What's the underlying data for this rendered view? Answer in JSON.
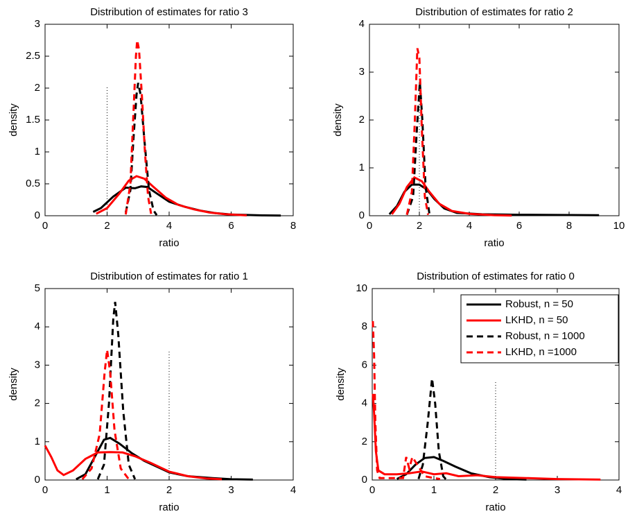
{
  "chart_data": [
    {
      "type": "line",
      "title": "Distribution of estimates for ratio 3",
      "xlabel": "ratio",
      "ylabel": "density",
      "xlim": [
        0,
        8
      ],
      "ylim": [
        0,
        3
      ],
      "xticks": [
        0,
        2,
        4,
        6,
        8
      ],
      "yticks": [
        0,
        0.5,
        1,
        1.5,
        2,
        2.5,
        3
      ],
      "marker_line": {
        "color": "#000000",
        "linestyle": "dotted",
        "x": [
          2,
          2
        ],
        "y": [
          0,
          2.03
        ]
      },
      "series": [
        {
          "color": "#000000",
          "linestyle": "solid",
          "x": [
            1.55,
            1.8,
            2.2,
            2.6,
            2.9,
            3.1,
            3.3,
            3.6,
            4,
            4.5,
            5,
            5.5,
            6,
            7,
            7.6
          ],
          "values": [
            0.06,
            0.12,
            0.3,
            0.44,
            0.43,
            0.46,
            0.45,
            0.35,
            0.22,
            0.14,
            0.08,
            0.04,
            0.02,
            0.005,
            0.003
          ]
        },
        {
          "color": "#ff0000",
          "linestyle": "solid",
          "x": [
            1.65,
            2,
            2.4,
            2.7,
            2.95,
            3.2,
            3.5,
            3.9,
            4.3,
            4.8,
            5.3,
            5.8,
            6.5
          ],
          "values": [
            0.03,
            0.12,
            0.35,
            0.55,
            0.62,
            0.58,
            0.45,
            0.28,
            0.17,
            0.1,
            0.05,
            0.025,
            0.005
          ]
        },
        {
          "color": "#000000",
          "linestyle": "dashed",
          "x": [
            2.6,
            2.75,
            2.85,
            2.95,
            3.0,
            3.08,
            3.2,
            3.35,
            3.5,
            3.6
          ],
          "values": [
            0.05,
            0.4,
            1.2,
            1.9,
            2.08,
            1.9,
            1.2,
            0.4,
            0.08,
            0.01
          ]
        },
        {
          "color": "#ff0000",
          "linestyle": "dashed",
          "x": [
            2.6,
            2.75,
            2.85,
            2.93,
            2.97,
            3.03,
            3.12,
            3.22,
            3.32,
            3.42
          ],
          "values": [
            0.02,
            0.5,
            1.6,
            2.5,
            2.75,
            2.6,
            1.9,
            1.0,
            0.3,
            0.03
          ]
        }
      ]
    },
    {
      "type": "line",
      "title": "Distribution of estimates for ratio 2",
      "xlabel": "ratio",
      "ylabel": "density",
      "xlim": [
        0,
        10
      ],
      "ylim": [
        0,
        4
      ],
      "xticks": [
        0,
        2,
        4,
        6,
        8,
        10
      ],
      "yticks": [
        0,
        1,
        2,
        3,
        4
      ],
      "marker_line": {
        "color": "#000000",
        "linestyle": "dotted",
        "x": [
          2,
          2
        ],
        "y": [
          0,
          3.0
        ]
      },
      "series": [
        {
          "color": "#000000",
          "linestyle": "solid",
          "x": [
            0.8,
            1.1,
            1.4,
            1.7,
            2,
            2.3,
            2.6,
            3,
            3.5,
            4.5,
            6,
            9.2
          ],
          "values": [
            0.03,
            0.2,
            0.5,
            0.65,
            0.65,
            0.55,
            0.35,
            0.15,
            0.06,
            0.03,
            0.02,
            0.01
          ]
        },
        {
          "color": "#ff0000",
          "linestyle": "solid",
          "x": [
            0.9,
            1.2,
            1.5,
            1.8,
            2.1,
            2.4,
            2.8,
            3.3,
            4,
            5,
            5.7
          ],
          "values": [
            0.03,
            0.25,
            0.6,
            0.8,
            0.72,
            0.5,
            0.25,
            0.1,
            0.04,
            0.01,
            0.005
          ]
        },
        {
          "color": "#000000",
          "linestyle": "dashed",
          "x": [
            1.5,
            1.75,
            1.9,
            2.02,
            2.12,
            2.25,
            2.4
          ],
          "values": [
            0.02,
            0.4,
            1.8,
            2.8,
            2.0,
            0.6,
            0.05
          ]
        },
        {
          "color": "#ff0000",
          "linestyle": "dashed",
          "x": [
            1.5,
            1.7,
            1.82,
            1.92,
            2.0,
            2.1,
            2.22,
            2.35
          ],
          "values": [
            0.02,
            0.5,
            2.0,
            3.5,
            3.3,
            1.8,
            0.4,
            0.02
          ]
        }
      ]
    },
    {
      "type": "line",
      "title": "Distribution of estimates for ratio 1",
      "xlabel": "ratio",
      "ylabel": "density",
      "xlim": [
        0,
        4
      ],
      "ylim": [
        0,
        5
      ],
      "xticks": [
        0,
        1,
        2,
        3,
        4
      ],
      "yticks": [
        0,
        1,
        2,
        3,
        4,
        5
      ],
      "marker_line": {
        "color": "#000000",
        "linestyle": "dotted",
        "x": [
          2,
          2
        ],
        "y": [
          0,
          3.4
        ]
      },
      "series": [
        {
          "color": "#000000",
          "linestyle": "solid",
          "x": [
            0.5,
            0.65,
            0.8,
            0.95,
            1.05,
            1.2,
            1.4,
            1.6,
            1.8,
            2,
            2.3,
            2.7,
            3,
            3.35
          ],
          "values": [
            0.02,
            0.15,
            0.6,
            1.05,
            1.1,
            0.95,
            0.7,
            0.5,
            0.35,
            0.2,
            0.1,
            0.05,
            0.02,
            0.01
          ]
        },
        {
          "color": "#ff0000",
          "linestyle": "solid",
          "x": [
            0,
            0.1,
            0.2,
            0.3,
            0.45,
            0.65,
            0.85,
            1.05,
            1.25,
            1.45,
            1.7,
            2.0,
            2.3,
            2.6,
            2.85
          ],
          "values": [
            0.9,
            0.6,
            0.25,
            0.13,
            0.25,
            0.55,
            0.72,
            0.73,
            0.72,
            0.62,
            0.45,
            0.22,
            0.1,
            0.04,
            0.02
          ]
        },
        {
          "color": "#000000",
          "linestyle": "dashed",
          "x": [
            0.85,
            0.95,
            1.03,
            1.1,
            1.13,
            1.18,
            1.26,
            1.35,
            1.45
          ],
          "values": [
            0.02,
            0.4,
            2.0,
            4.2,
            4.65,
            3.8,
            1.8,
            0.4,
            0.02
          ]
        },
        {
          "color": "#ff0000",
          "linestyle": "dashed",
          "x": [
            0.6,
            0.75,
            0.88,
            0.96,
            1.0,
            1.05,
            1.12,
            1.22,
            1.35
          ],
          "values": [
            0.02,
            0.3,
            1.2,
            2.8,
            3.4,
            2.8,
            1.3,
            0.3,
            0.02
          ]
        }
      ]
    },
    {
      "type": "line",
      "title": "Distribution of estimates for ratio 0",
      "xlabel": "ratio",
      "ylabel": "density",
      "xlim": [
        0,
        4
      ],
      "ylim": [
        0,
        10
      ],
      "xticks": [
        0,
        1,
        2,
        3,
        4
      ],
      "yticks": [
        0,
        2,
        4,
        6,
        8,
        10
      ],
      "legend": "upper right",
      "marker_line": {
        "color": "#000000",
        "linestyle": "dotted",
        "x": [
          2,
          2
        ],
        "y": [
          0,
          5.2
        ]
      },
      "series": [
        {
          "name": "Robust, n = 50",
          "color": "#000000",
          "linestyle": "solid",
          "x": [
            0.4,
            0.55,
            0.7,
            0.85,
            1,
            1.15,
            1.35,
            1.6,
            1.9,
            2.2,
            2.5
          ],
          "values": [
            0.05,
            0.3,
            0.8,
            1.15,
            1.2,
            1.0,
            0.7,
            0.35,
            0.15,
            0.05,
            0.02
          ]
        },
        {
          "name": "LKHD, n = 50",
          "color": "#ff0000",
          "linestyle": "solid",
          "x": [
            0.01,
            0.03,
            0.06,
            0.1,
            0.2,
            0.4,
            0.6,
            0.8,
            1.0,
            1.2,
            1.4,
            1.7,
            2.0,
            2.5,
            3.0,
            3.7
          ],
          "values": [
            4.5,
            3.5,
            1.5,
            0.5,
            0.3,
            0.3,
            0.35,
            0.45,
            0.3,
            0.35,
            0.2,
            0.25,
            0.15,
            0.1,
            0.05,
            0.02
          ]
        },
        {
          "name": "Robust, n = 1000",
          "color": "#000000",
          "linestyle": "dashed",
          "x": [
            0.75,
            0.82,
            0.9,
            0.97,
            1.02,
            1.08,
            1.15,
            1.2
          ],
          "values": [
            0.05,
            0.8,
            3.0,
            5.3,
            4.0,
            1.5,
            0.2,
            0.02
          ]
        },
        {
          "name": "LKHD, n =1000",
          "color": "#ff0000",
          "linestyle": "dashed",
          "x": [
            0.01,
            0.03,
            0.05,
            0.08,
            0.12,
            0.5,
            0.55,
            0.6,
            0.65,
            0.75,
            0.85,
            1.0,
            1.1
          ],
          "values": [
            8.3,
            6.5,
            3.0,
            0.5,
            0.1,
            0.1,
            1.2,
            0.6,
            1.2,
            0.7,
            0.2,
            0.1,
            0.05
          ]
        }
      ]
    }
  ]
}
